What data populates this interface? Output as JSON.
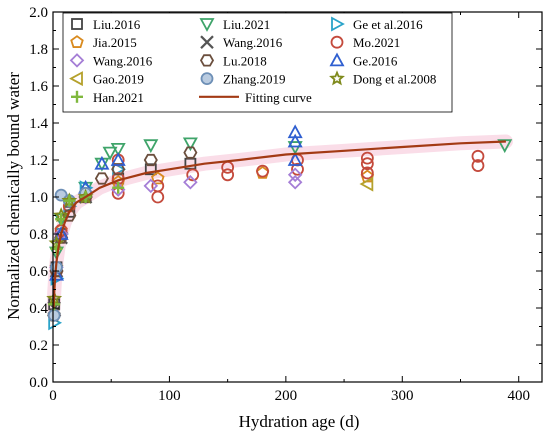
{
  "chart_data": {
    "type": "scatter",
    "xlabel": "Hydration age (d)",
    "ylabel": "Normalized chemically bound water",
    "xlim": [
      0,
      420
    ],
    "ylim": [
      0.0,
      2.0
    ],
    "xticks": [
      0,
      100,
      200,
      300,
      400
    ],
    "yticks": [
      0.0,
      0.2,
      0.4,
      0.6,
      0.8,
      1.0,
      1.2,
      1.4,
      1.6,
      1.8,
      2.0
    ],
    "legend_position": "top",
    "series": [
      {
        "name": "Liu.2016",
        "marker": "square",
        "color": "#444444",
        "points": [
          [
            1,
            0.42
          ],
          [
            3,
            0.62
          ],
          [
            7,
            0.8
          ],
          [
            14,
            0.92
          ],
          [
            28,
            1.0
          ],
          [
            56,
            1.1
          ],
          [
            84,
            1.15
          ],
          [
            118,
            1.18
          ]
        ]
      },
      {
        "name": "Liu.2021",
        "marker": "triangle-down",
        "color": "#3fa46a",
        "points": [
          [
            3,
            0.7
          ],
          [
            7,
            0.88
          ],
          [
            28,
            1.05
          ],
          [
            42,
            1.18
          ],
          [
            49,
            1.24
          ],
          [
            56,
            1.26
          ],
          [
            84,
            1.28
          ],
          [
            118,
            1.29
          ],
          [
            208,
            1.27
          ],
          [
            388,
            1.28
          ]
        ]
      },
      {
        "name": "Ge et al.2016",
        "marker": "triangle-right",
        "color": "#2aa3c9",
        "points": [
          [
            1,
            0.32
          ],
          [
            3,
            0.56
          ],
          [
            7,
            0.8
          ],
          [
            14,
            0.95
          ],
          [
            28,
            1.05
          ],
          [
            56,
            1.15
          ]
        ]
      },
      {
        "name": "Jia.2015",
        "marker": "pentagon",
        "color": "#d98a1e",
        "points": [
          [
            3,
            0.62
          ],
          [
            7,
            0.82
          ],
          [
            28,
            1.01
          ],
          [
            56,
            1.08
          ],
          [
            90,
            1.1
          ],
          [
            180,
            1.13
          ],
          [
            270,
            1.11
          ]
        ]
      },
      {
        "name": "Wang.2016",
        "marker": "x",
        "color": "#555555",
        "points": [
          [
            1,
            0.4
          ],
          [
            3,
            0.6
          ],
          [
            7,
            0.78
          ],
          [
            28,
            1.0
          ]
        ]
      },
      {
        "name": "Mo.2021",
        "marker": "circle",
        "color": "#c44a3c",
        "points": [
          [
            3,
            0.6
          ],
          [
            7,
            0.82
          ],
          [
            14,
            0.95
          ],
          [
            28,
            1.0
          ],
          [
            56,
            1.02
          ],
          [
            56,
            1.1
          ],
          [
            56,
            1.2
          ],
          [
            90,
            1.0
          ],
          [
            90,
            1.06
          ],
          [
            120,
            1.12
          ],
          [
            150,
            1.12
          ],
          [
            150,
            1.16
          ],
          [
            180,
            1.14
          ],
          [
            210,
            1.15
          ],
          [
            210,
            1.2
          ],
          [
            270,
            1.13
          ],
          [
            270,
            1.18
          ],
          [
            270,
            1.21
          ],
          [
            365,
            1.17
          ],
          [
            365,
            1.22
          ]
        ]
      },
      {
        "name": "Wang.2016",
        "marker": "diamond",
        "color": "#a57ed6",
        "points": [
          [
            3,
            0.62
          ],
          [
            7,
            0.8
          ],
          [
            28,
            1.0
          ],
          [
            56,
            1.04
          ],
          [
            84,
            1.06
          ],
          [
            118,
            1.08
          ],
          [
            208,
            1.08
          ],
          [
            208,
            1.12
          ]
        ]
      },
      {
        "name": "Lu.2018",
        "marker": "hexagon",
        "color": "#6b4f3e",
        "points": [
          [
            1,
            0.36
          ],
          [
            3,
            0.6
          ],
          [
            7,
            0.78
          ],
          [
            14,
            0.9
          ],
          [
            28,
            1.0
          ],
          [
            42,
            1.1
          ],
          [
            56,
            1.15
          ],
          [
            84,
            1.2
          ],
          [
            118,
            1.24
          ]
        ]
      },
      {
        "name": "Ge.2016",
        "marker": "triangle-up",
        "color": "#2f5fd0",
        "points": [
          [
            3,
            0.58
          ],
          [
            7,
            0.8
          ],
          [
            28,
            1.05
          ],
          [
            42,
            1.18
          ],
          [
            56,
            1.2
          ],
          [
            208,
            1.3
          ],
          [
            208,
            1.35
          ],
          [
            208,
            1.2
          ]
        ]
      },
      {
        "name": "Gao.2019",
        "marker": "triangle-left",
        "color": "#b5a12c",
        "points": [
          [
            270,
            1.07
          ]
        ]
      },
      {
        "name": "Zhang.2019",
        "marker": "circle-filled",
        "color": "#6d8fb6",
        "points": [
          [
            1,
            0.36
          ],
          [
            3,
            0.62
          ],
          [
            7,
            1.01
          ],
          [
            14,
            0.98
          ],
          [
            28,
            1.02
          ]
        ]
      },
      {
        "name": "Dong et al.2008",
        "marker": "star",
        "color": "#7f8a1c",
        "points": [
          [
            1,
            0.45
          ],
          [
            3,
            0.75
          ],
          [
            7,
            0.9
          ],
          [
            14,
            0.98
          ],
          [
            28,
            1.0
          ]
        ]
      },
      {
        "name": "Han.2021",
        "marker": "plus",
        "color": "#7fb83d",
        "points": [
          [
            1,
            0.42
          ],
          [
            3,
            0.72
          ],
          [
            7,
            0.88
          ],
          [
            14,
            0.98
          ],
          [
            28,
            1.0
          ],
          [
            56,
            1.05
          ]
        ]
      },
      {
        "name": "Fitting curve",
        "type": "line",
        "color": "#a33a14",
        "x": [
          0.5,
          1,
          2,
          3,
          5,
          7,
          10,
          14,
          20,
          28,
          40,
          56,
          80,
          100,
          130,
          160,
          200,
          250,
          300,
          350,
          389
        ],
        "y": [
          0.4,
          0.48,
          0.58,
          0.65,
          0.74,
          0.8,
          0.86,
          0.92,
          0.97,
          1.0,
          1.05,
          1.09,
          1.13,
          1.15,
          1.18,
          1.2,
          1.23,
          1.25,
          1.27,
          1.29,
          1.3
        ]
      }
    ]
  }
}
